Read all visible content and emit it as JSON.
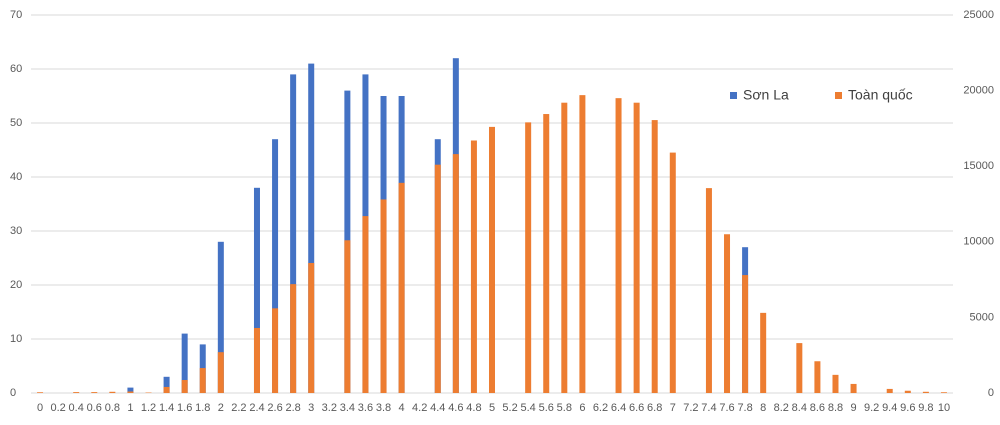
{
  "chart_data": {
    "type": "bar",
    "overlap": true,
    "categories": [
      "0",
      "0.2",
      "0.4",
      "0.6",
      "0.8",
      "1",
      "1.2",
      "1.4",
      "1.6",
      "1.8",
      "2",
      "2.2",
      "2.4",
      "2.6",
      "2.8",
      "3",
      "3.2",
      "3.4",
      "3.6",
      "3.8",
      "4",
      "4.2",
      "4.4",
      "4.6",
      "4.8",
      "5",
      "5.2",
      "5.4",
      "5.6",
      "5.8",
      "6",
      "6.2",
      "6.4",
      "6.6",
      "6.8",
      "7",
      "7.2",
      "7.4",
      "7.6",
      "7.8",
      "8",
      "8.2",
      "8.4",
      "8.6",
      "8.8",
      "9",
      "9.2",
      "9.4",
      "9.6",
      "9.8",
      "10"
    ],
    "series": [
      {
        "name": "Sơn La",
        "color": "#4472c4",
        "axis": "y",
        "values": [
          0,
          0,
          0,
          0,
          0,
          1,
          0,
          3,
          11,
          9,
          28,
          0,
          38,
          47,
          59,
          61,
          0,
          56,
          59,
          55,
          55,
          0,
          47,
          62,
          0,
          0,
          0,
          0,
          0,
          0,
          0,
          0,
          0,
          0,
          0,
          0,
          0,
          0,
          0,
          27,
          0,
          0,
          0,
          0,
          0,
          0,
          0,
          0,
          0,
          0,
          0
        ]
      },
      {
        "name": "Toàn quốc",
        "color": "#ed7d31",
        "axis": "y2",
        "values": [
          50,
          0,
          60,
          60,
          80,
          100,
          30,
          400,
          860,
          1650,
          2700,
          0,
          4300,
          5600,
          7200,
          8600,
          0,
          10100,
          11700,
          12800,
          13900,
          0,
          15100,
          15800,
          16700,
          17600,
          0,
          17900,
          18450,
          19200,
          19700,
          0,
          19500,
          19200,
          18050,
          15900,
          0,
          13550,
          10500,
          7800,
          5300,
          0,
          3300,
          2100,
          1200,
          600,
          0,
          270,
          150,
          80,
          50
        ]
      }
    ],
    "ylim": [
      0,
      70
    ],
    "yticks": [
      0,
      10,
      20,
      30,
      40,
      50,
      60,
      70
    ],
    "y2lim": [
      0,
      25000
    ],
    "y2ticks": [
      0,
      5000,
      10000,
      15000,
      20000,
      25000
    ],
    "grid": true,
    "legend": "upper right"
  }
}
